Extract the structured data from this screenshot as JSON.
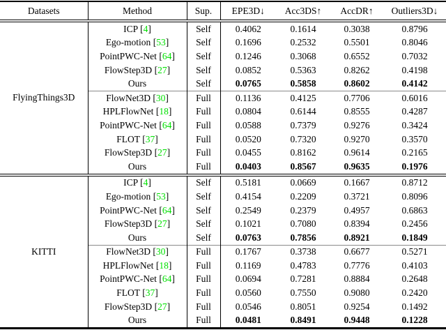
{
  "table": {
    "citation_color": "#00e000",
    "headers": [
      "Datasets",
      "Method",
      "Sup.",
      "EPE3D↓",
      "Acc3DS↑",
      "AccDR↑",
      "Outliers3D↓"
    ],
    "sections": [
      {
        "dataset": "FlyingThings3D",
        "groups": [
          {
            "rows": [
              {
                "method": "ICP",
                "cite": "4",
                "sup": "Self",
                "values": [
                  "0.4062",
                  "0.1614",
                  "0.3038",
                  "0.8796"
                ],
                "bold": false
              },
              {
                "method": "Ego-motion",
                "cite": "53",
                "sup": "Self",
                "values": [
                  "0.1696",
                  "0.2532",
                  "0.5501",
                  "0.8046"
                ],
                "bold": false
              },
              {
                "method": "PointPWC-Net",
                "cite": "64",
                "sup": "Self",
                "values": [
                  "0.1246",
                  "0.3068",
                  "0.6552",
                  "0.7032"
                ],
                "bold": false
              },
              {
                "method": "FlowStep3D",
                "cite": "27",
                "sup": "Self",
                "values": [
                  "0.0852",
                  "0.5363",
                  "0.8262",
                  "0.4198"
                ],
                "bold": false
              },
              {
                "method": "Ours",
                "cite": null,
                "sup": "Self",
                "values": [
                  "0.0765",
                  "0.5858",
                  "0.8602",
                  "0.4142"
                ],
                "bold": true
              }
            ]
          },
          {
            "rows": [
              {
                "method": "FlowNet3D",
                "cite": "30",
                "sup": "Full",
                "values": [
                  "0.1136",
                  "0.4125",
                  "0.7706",
                  "0.6016"
                ],
                "bold": false
              },
              {
                "method": "HPLFlowNet",
                "cite": "18",
                "sup": "Full",
                "values": [
                  "0.0804",
                  "0.6144",
                  "0.8555",
                  "0.4287"
                ],
                "bold": false
              },
              {
                "method": "PointPWC-Net",
                "cite": "64",
                "sup": "Full",
                "values": [
                  "0.0588",
                  "0.7379",
                  "0.9276",
                  "0.3424"
                ],
                "bold": false
              },
              {
                "method": "FLOT",
                "cite": "37",
                "sup": "Full",
                "values": [
                  "0.0520",
                  "0.7320",
                  "0.9270",
                  "0.3570"
                ],
                "bold": false
              },
              {
                "method": "FlowStep3D",
                "cite": "27",
                "sup": "Full",
                "values": [
                  "0.0455",
                  "0.8162",
                  "0.9614",
                  "0.2165"
                ],
                "bold": false
              },
              {
                "method": "Ours",
                "cite": null,
                "sup": "Full",
                "values": [
                  "0.0403",
                  "0.8567",
                  "0.9635",
                  "0.1976"
                ],
                "bold": true
              }
            ]
          }
        ]
      },
      {
        "dataset": "KITTI",
        "groups": [
          {
            "rows": [
              {
                "method": "ICP",
                "cite": "4",
                "sup": "Self",
                "values": [
                  "0.5181",
                  "0.0669",
                  "0.1667",
                  "0.8712"
                ],
                "bold": false
              },
              {
                "method": "Ego-motion",
                "cite": "53",
                "sup": "Self",
                "values": [
                  "0.4154",
                  "0.2209",
                  "0.3721",
                  "0.8096"
                ],
                "bold": false
              },
              {
                "method": "PointPWC-Net",
                "cite": "64",
                "sup": "Self",
                "values": [
                  "0.2549",
                  "0.2379",
                  "0.4957",
                  "0.6863"
                ],
                "bold": false
              },
              {
                "method": "FlowStep3D",
                "cite": "27",
                "sup": "Self",
                "values": [
                  "0.1021",
                  "0.7080",
                  "0.8394",
                  "0.2456"
                ],
                "bold": false
              },
              {
                "method": "Ours",
                "cite": null,
                "sup": "Self",
                "values": [
                  "0.0763",
                  "0.7856",
                  "0.8921",
                  "0.1849"
                ],
                "bold": true
              }
            ]
          },
          {
            "rows": [
              {
                "method": "FlowNet3D",
                "cite": "30",
                "sup": "Full",
                "values": [
                  "0.1767",
                  "0.3738",
                  "0.6677",
                  "0.5271"
                ],
                "bold": false
              },
              {
                "method": "HPLFlowNet",
                "cite": "18",
                "sup": "Full",
                "values": [
                  "0.1169",
                  "0.4783",
                  "0.7776",
                  "0.4103"
                ],
                "bold": false
              },
              {
                "method": "PointPWC-Net",
                "cite": "64",
                "sup": "Full",
                "values": [
                  "0.0694",
                  "0.7281",
                  "0.8884",
                  "0.2648"
                ],
                "bold": false
              },
              {
                "method": "FLOT",
                "cite": "37",
                "sup": "Full",
                "values": [
                  "0.0560",
                  "0.7550",
                  "0.9080",
                  "0.2420"
                ],
                "bold": false
              },
              {
                "method": "FlowStep3D",
                "cite": "27",
                "sup": "Full",
                "values": [
                  "0.0546",
                  "0.8051",
                  "0.9254",
                  "0.1492"
                ],
                "bold": false
              },
              {
                "method": "Ours",
                "cite": null,
                "sup": "Full",
                "values": [
                  "0.0481",
                  "0.8491",
                  "0.9448",
                  "0.1228"
                ],
                "bold": true
              }
            ]
          }
        ]
      }
    ]
  }
}
